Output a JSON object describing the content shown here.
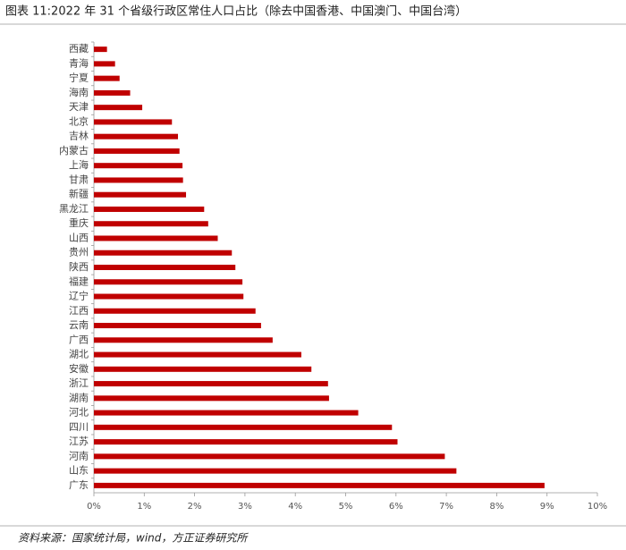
{
  "chart_data": {
    "type": "barh",
    "title": "图表 11:2022 年 31 个省级行政区常住人口占比（除去中国香港、中国澳门、中国台湾）",
    "source": "资料来源：国家统计局，wind，方正证券研究所",
    "categories": [
      "西藏",
      "青海",
      "宁夏",
      "海南",
      "天津",
      "北京",
      "吉林",
      "内蒙古",
      "上海",
      "甘肃",
      "新疆",
      "黑龙江",
      "重庆",
      "山西",
      "贵州",
      "陕西",
      "福建",
      "辽宁",
      "江西",
      "云南",
      "广西",
      "湖北",
      "安徽",
      "浙江",
      "湖南",
      "河北",
      "四川",
      "江苏",
      "河南",
      "山东",
      "广东"
    ],
    "values": [
      0.26,
      0.42,
      0.51,
      0.72,
      0.96,
      1.55,
      1.67,
      1.7,
      1.76,
      1.77,
      1.83,
      2.19,
      2.27,
      2.46,
      2.74,
      2.81,
      2.95,
      2.97,
      3.21,
      3.32,
      3.55,
      4.12,
      4.32,
      4.65,
      4.67,
      5.25,
      5.92,
      6.03,
      6.97,
      7.2,
      8.95
    ],
    "color": "#c00000",
    "xlim": [
      0,
      10
    ],
    "xticks": [
      {
        "value": 0,
        "label": "0%"
      },
      {
        "value": 1,
        "label": "1%"
      },
      {
        "value": 2,
        "label": "2%"
      },
      {
        "value": 3,
        "label": "3%"
      },
      {
        "value": 4,
        "label": "4%"
      },
      {
        "value": 5,
        "label": "5%"
      },
      {
        "value": 6,
        "label": "6%"
      },
      {
        "value": 7,
        "label": "7%"
      },
      {
        "value": 8,
        "label": "8%"
      },
      {
        "value": 9,
        "label": "9%"
      },
      {
        "value": 10,
        "label": "10%"
      }
    ],
    "grid": false
  }
}
